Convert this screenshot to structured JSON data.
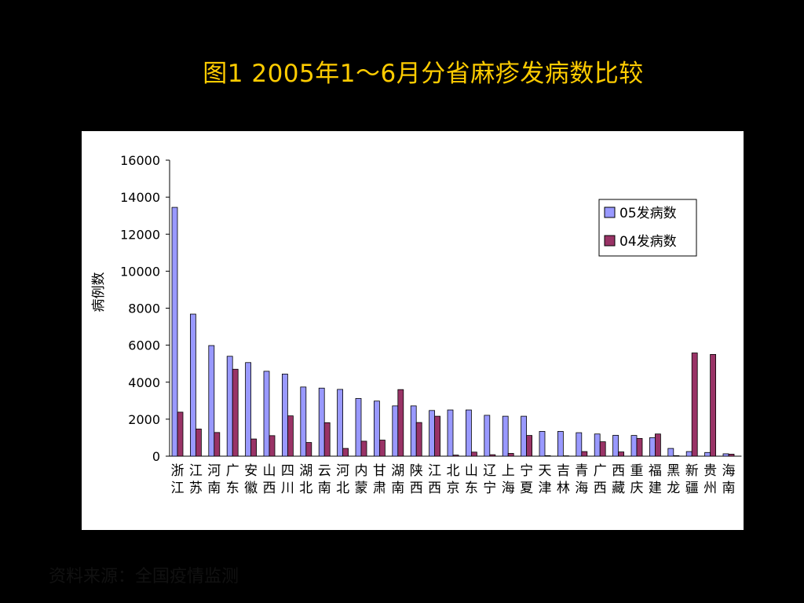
{
  "slide": {
    "title": "图1 2005年1～6月分省麻疹发病数比较",
    "source": "资料来源：全国疫情监测"
  },
  "colors": {
    "background": "#000000",
    "title": "#ffcc00",
    "series_2005": "#9999ff",
    "series_2004": "#993366"
  },
  "chart_data": {
    "type": "bar",
    "title": "",
    "xlabel": "",
    "ylabel": "病例数",
    "ylim": [
      0,
      16000
    ],
    "yticks": [
      0,
      2000,
      4000,
      6000,
      8000,
      10000,
      12000,
      14000,
      16000
    ],
    "grid": false,
    "legend_position": "top-right",
    "categories": [
      "浙江",
      "江苏",
      "河南",
      "广东",
      "安徽",
      "山西",
      "四川",
      "湖北",
      "云南",
      "河北",
      "内蒙",
      "甘肃",
      "湖南",
      "陕西",
      "江西",
      "北京",
      "山东",
      "辽宁",
      "上海",
      "宁夏",
      "天津",
      "吉林",
      "青海",
      "广西",
      "西藏",
      "重庆",
      "福建",
      "黑龙",
      "新疆",
      "贵州",
      "海南"
    ],
    "series": [
      {
        "name": "05发病数",
        "values": [
          13450,
          7680,
          5980,
          5400,
          5060,
          4590,
          4440,
          3740,
          3680,
          3610,
          3120,
          2980,
          2720,
          2720,
          2470,
          2500,
          2500,
          2210,
          2160,
          2160,
          1340,
          1340,
          1270,
          1200,
          1130,
          1120,
          1000,
          420,
          250,
          200,
          130
        ]
      },
      {
        "name": "04发病数",
        "values": [
          2380,
          1470,
          1280,
          4700,
          930,
          1110,
          2180,
          740,
          1810,
          420,
          810,
          870,
          3600,
          1820,
          2160,
          60,
          220,
          80,
          150,
          1120,
          30,
          20,
          250,
          780,
          230,
          960,
          1200,
          30,
          5580,
          5500,
          110
        ]
      }
    ]
  }
}
